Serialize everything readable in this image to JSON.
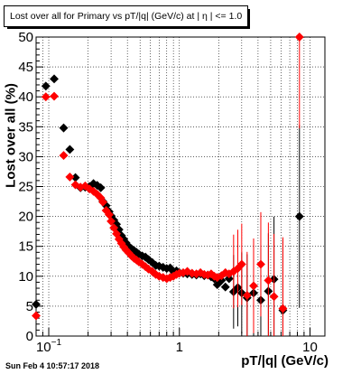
{
  "chart_data": {
    "type": "scatter",
    "title": "Lost over all for Primary vs pT/|q| (GeV/c) at |  η | <= 1.0",
    "xlabel": "pT/|q| (GeV/c)",
    "ylabel": "Lost over all (%)",
    "xscale": "log",
    "xlim": [
      0.08,
      13
    ],
    "ylim": [
      0,
      50
    ],
    "grid": true,
    "x_tick_labels": [
      "10^{-1}",
      "1",
      "10"
    ],
    "y_tick_labels": [
      "0",
      "5",
      "10",
      "15",
      "20",
      "25",
      "30",
      "35",
      "40",
      "45",
      "50"
    ],
    "series": [
      {
        "color": "#000000",
        "points": [
          {
            "x": 0.08,
            "y": 5.3
          },
          {
            "x": 0.095,
            "y": 41.8
          },
          {
            "x": 0.11,
            "y": 43.0
          },
          {
            "x": 0.13,
            "y": 34.8
          },
          {
            "x": 0.145,
            "y": 31.2
          },
          {
            "x": 0.16,
            "y": 26.5
          },
          {
            "x": 0.175,
            "y": 24.8
          },
          {
            "x": 0.19,
            "y": 24.9
          },
          {
            "x": 0.205,
            "y": 25.0
          },
          {
            "x": 0.22,
            "y": 25.5
          },
          {
            "x": 0.235,
            "y": 25.2
          },
          {
            "x": 0.25,
            "y": 24.8
          },
          {
            "x": 0.26,
            "y": 22.5
          },
          {
            "x": 0.275,
            "y": 21.8
          },
          {
            "x": 0.29,
            "y": 20.8
          },
          {
            "x": 0.3,
            "y": 20.1
          },
          {
            "x": 0.315,
            "y": 19.4
          },
          {
            "x": 0.33,
            "y": 18.7
          },
          {
            "x": 0.345,
            "y": 17.8
          },
          {
            "x": 0.36,
            "y": 16.8
          },
          {
            "x": 0.375,
            "y": 16.2
          },
          {
            "x": 0.39,
            "y": 15.6
          },
          {
            "x": 0.41,
            "y": 15.0
          },
          {
            "x": 0.43,
            "y": 14.6
          },
          {
            "x": 0.45,
            "y": 14.3
          },
          {
            "x": 0.47,
            "y": 14.0
          },
          {
            "x": 0.49,
            "y": 13.7
          },
          {
            "x": 0.52,
            "y": 13.4
          },
          {
            "x": 0.55,
            "y": 13.2
          },
          {
            "x": 0.58,
            "y": 12.8
          },
          {
            "x": 0.62,
            "y": 12.3
          },
          {
            "x": 0.66,
            "y": 11.8
          },
          {
            "x": 0.7,
            "y": 11.7
          },
          {
            "x": 0.75,
            "y": 11.5
          },
          {
            "x": 0.8,
            "y": 11.3
          },
          {
            "x": 0.85,
            "y": 11.4
          },
          {
            "x": 0.9,
            "y": 10.8
          },
          {
            "x": 0.95,
            "y": 10.9
          },
          {
            "x": 1.0,
            "y": 10.6
          },
          {
            "x": 1.07,
            "y": 10.5
          },
          {
            "x": 1.15,
            "y": 10.4
          },
          {
            "x": 1.25,
            "y": 10.3
          },
          {
            "x": 1.35,
            "y": 10.2
          },
          {
            "x": 1.45,
            "y": 10.4
          },
          {
            "x": 1.55,
            "y": 10.1
          },
          {
            "x": 1.65,
            "y": 10.2
          },
          {
            "x": 1.75,
            "y": 9.9
          },
          {
            "x": 1.85,
            "y": 9.6
          },
          {
            "x": 1.95,
            "y": 8.6
          },
          {
            "x": 2.1,
            "y": 9.3
          },
          {
            "x": 2.25,
            "y": 8.2
          },
          {
            "x": 2.4,
            "y": 9.6
          },
          {
            "x": 2.6,
            "y": 7.4
          },
          {
            "x": 2.8,
            "y": 8.1
          },
          {
            "x": 3.0,
            "y": 7.2
          },
          {
            "x": 3.3,
            "y": 6.4
          },
          {
            "x": 3.7,
            "y": 7.2
          },
          {
            "x": 4.2,
            "y": 6.0
          },
          {
            "x": 4.8,
            "y": 7.5
          },
          {
            "x": 5.3,
            "y": 9.5
          },
          {
            "x": 6.2,
            "y": 4.3
          },
          {
            "x": 8.3,
            "y": 20.0
          }
        ]
      },
      {
        "color": "#ff0000",
        "points": [
          {
            "x": 0.08,
            "y": 3.4
          },
          {
            "x": 0.095,
            "y": 40.0
          },
          {
            "x": 0.11,
            "y": 40.1
          },
          {
            "x": 0.13,
            "y": 30.2
          },
          {
            "x": 0.145,
            "y": 26.6
          },
          {
            "x": 0.16,
            "y": 25.3
          },
          {
            "x": 0.175,
            "y": 24.9
          },
          {
            "x": 0.19,
            "y": 25.1
          },
          {
            "x": 0.205,
            "y": 24.6
          },
          {
            "x": 0.22,
            "y": 24.2
          },
          {
            "x": 0.235,
            "y": 23.7
          },
          {
            "x": 0.25,
            "y": 23.1
          },
          {
            "x": 0.26,
            "y": 22.4
          },
          {
            "x": 0.275,
            "y": 21.0
          },
          {
            "x": 0.29,
            "y": 20.3
          },
          {
            "x": 0.3,
            "y": 19.2
          },
          {
            "x": 0.315,
            "y": 18.1
          },
          {
            "x": 0.33,
            "y": 17.1
          },
          {
            "x": 0.345,
            "y": 16.2
          },
          {
            "x": 0.36,
            "y": 15.5
          },
          {
            "x": 0.375,
            "y": 14.9
          },
          {
            "x": 0.39,
            "y": 14.4
          },
          {
            "x": 0.41,
            "y": 13.9
          },
          {
            "x": 0.43,
            "y": 13.4
          },
          {
            "x": 0.45,
            "y": 13.0
          },
          {
            "x": 0.47,
            "y": 12.7
          },
          {
            "x": 0.49,
            "y": 12.4
          },
          {
            "x": 0.52,
            "y": 12.0
          },
          {
            "x": 0.55,
            "y": 11.6
          },
          {
            "x": 0.58,
            "y": 11.2
          },
          {
            "x": 0.62,
            "y": 10.8
          },
          {
            "x": 0.66,
            "y": 10.3
          },
          {
            "x": 0.7,
            "y": 10.0
          },
          {
            "x": 0.75,
            "y": 9.8
          },
          {
            "x": 0.8,
            "y": 9.6
          },
          {
            "x": 0.85,
            "y": 9.8
          },
          {
            "x": 0.9,
            "y": 10.0
          },
          {
            "x": 0.95,
            "y": 10.3
          },
          {
            "x": 1.0,
            "y": 10.5
          },
          {
            "x": 1.07,
            "y": 10.6
          },
          {
            "x": 1.15,
            "y": 10.8
          },
          {
            "x": 1.25,
            "y": 10.5
          },
          {
            "x": 1.35,
            "y": 10.4
          },
          {
            "x": 1.45,
            "y": 10.6
          },
          {
            "x": 1.55,
            "y": 10.3
          },
          {
            "x": 1.65,
            "y": 10.2
          },
          {
            "x": 1.75,
            "y": 10.4
          },
          {
            "x": 1.85,
            "y": 10.0
          },
          {
            "x": 1.95,
            "y": 9.8
          },
          {
            "x": 2.1,
            "y": 10.1
          },
          {
            "x": 2.25,
            "y": 10.6
          },
          {
            "x": 2.4,
            "y": 10.4
          },
          {
            "x": 2.6,
            "y": 10.8
          },
          {
            "x": 2.8,
            "y": 11.3
          },
          {
            "x": 3.0,
            "y": 12.0
          },
          {
            "x": 3.3,
            "y": 6.8
          },
          {
            "x": 3.7,
            "y": 8.4
          },
          {
            "x": 4.2,
            "y": 12.0
          },
          {
            "x": 4.8,
            "y": 9.3
          },
          {
            "x": 5.3,
            "y": 6.6
          },
          {
            "x": 6.2,
            "y": 4.6
          },
          {
            "x": 8.3,
            "y": 50.0
          }
        ]
      }
    ]
  },
  "footer": {
    "date": "Sun Feb  4 10:57:17 2018"
  }
}
